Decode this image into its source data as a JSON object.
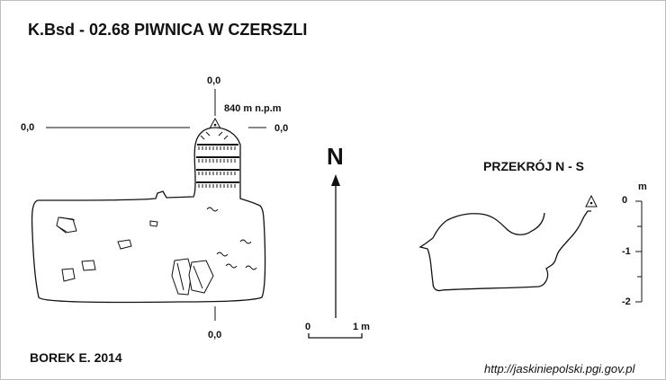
{
  "title": "K.Bsd - 02.68  PIWNICA W CZERSZLI",
  "plan": {
    "datum_top": "0,0",
    "datum_left": "0,0",
    "datum_right": "0,0",
    "datum_bottom": "0,0",
    "altitude": "840 m n.p.m"
  },
  "north_label": "N",
  "scale": {
    "start": "0",
    "end": "1 m"
  },
  "section": {
    "title": "PRZEKRÓJ N - S",
    "unit": "m",
    "ticks": [
      "0",
      "-1",
      "-2"
    ]
  },
  "author": "BOREK E. 2014",
  "source_url": "http://jaskiniepolski.pgi.gov.pl",
  "colors": {
    "ink": "#111111",
    "background": "#ffffff",
    "border": "#bdbdbd"
  }
}
